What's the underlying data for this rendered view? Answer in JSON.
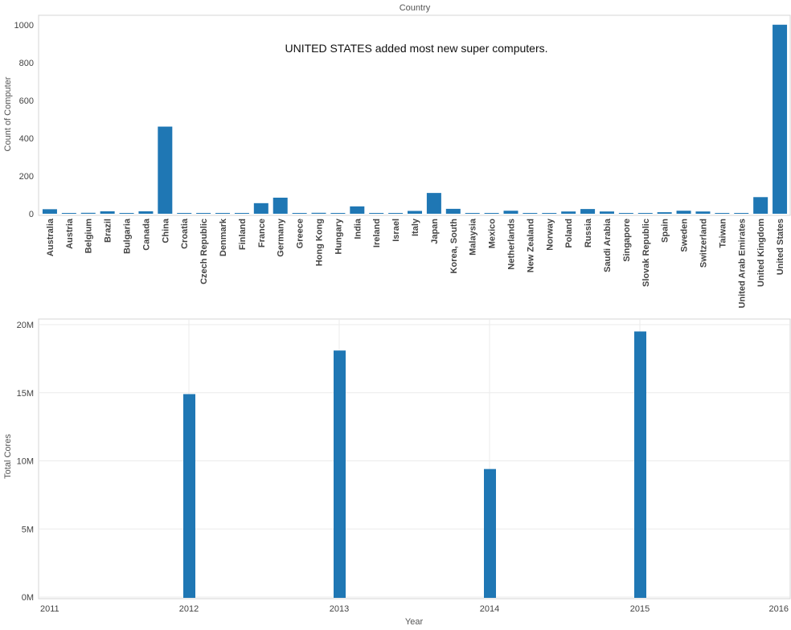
{
  "chart_data": [
    {
      "type": "bar",
      "title": "Country",
      "ylabel": "Count of Computer",
      "xlabel": "",
      "ylim": [
        0,
        1050
      ],
      "yticks": [
        0,
        200,
        400,
        600,
        800,
        1000
      ],
      "ytick_labels": [
        "0",
        "200",
        "400",
        "600",
        "800",
        "1000"
      ],
      "annotation": "UNITED STATES added most new super computers.",
      "grid": false,
      "bar_color": "#1f77b4",
      "categories": [
        "Australia",
        "Austria",
        "Belgium",
        "Brazil",
        "Bulgaria",
        "Canada",
        "China",
        "Croatia",
        "Czech Republic",
        "Denmark",
        "Finland",
        "France",
        "Germany",
        "Greece",
        "Hong Kong",
        "Hungary",
        "India",
        "Ireland",
        "Israel",
        "Italy",
        "Japan",
        "Korea, South",
        "Malaysia",
        "Mexico",
        "Netherlands",
        "New Zealand",
        "Norway",
        "Poland",
        "Russia",
        "Saudi Arabia",
        "Singapore",
        "Slovak Republic",
        "Spain",
        "Sweden",
        "Switzerland",
        "Taiwan",
        "United Arab Emirates",
        "United Kingdom",
        "United States"
      ],
      "values": [
        24,
        1,
        5,
        13,
        1,
        13,
        461,
        1,
        1,
        4,
        4,
        56,
        85,
        1,
        5,
        1,
        39,
        4,
        4,
        15,
        110,
        26,
        1,
        3,
        16,
        1,
        4,
        12,
        25,
        12,
        1,
        1,
        8,
        16,
        12,
        3,
        1,
        88,
        1000
      ]
    },
    {
      "type": "bar",
      "title": "",
      "ylabel": "Total Cores",
      "xlabel": "Year",
      "ylim": [
        0,
        20000000
      ],
      "yticks": [
        0,
        5000000,
        10000000,
        15000000,
        20000000
      ],
      "ytick_labels": [
        "0M",
        "5M",
        "10M",
        "15M",
        "20M"
      ],
      "x": [
        2011,
        2012,
        2013,
        2014,
        2015,
        2016
      ],
      "xtick_labels": [
        "2011",
        "2012",
        "2013",
        "2014",
        "2015",
        "2016"
      ],
      "bars": [
        {
          "x": 2012,
          "value": 14900000
        },
        {
          "x": 2013,
          "value": 18100000
        },
        {
          "x": 2014,
          "value": 9400000
        },
        {
          "x": 2015,
          "value": 19500000
        }
      ],
      "grid": true,
      "bar_color": "#1f77b4"
    }
  ]
}
